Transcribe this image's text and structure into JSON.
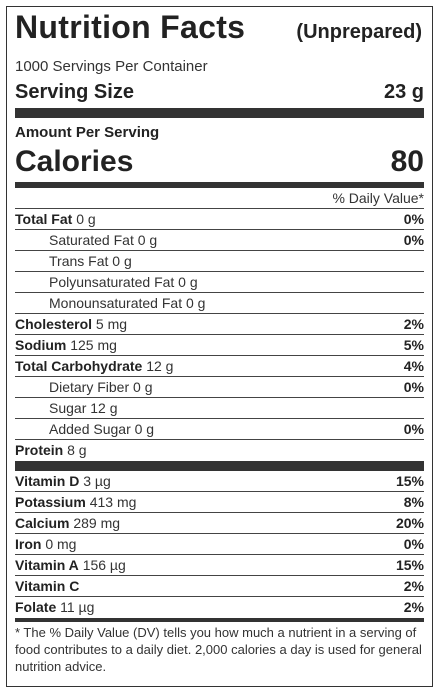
{
  "header": {
    "title": "Nutrition Facts",
    "subtitle": "(Unprepared)",
    "servings_per_container": "1000 Servings Per Container",
    "serving_size_label": "Serving Size",
    "serving_size_value": "23 g",
    "amount_per_serving": "Amount Per Serving",
    "calories_label": "Calories",
    "calories_value": "80",
    "dv_header": "% Daily Value*"
  },
  "nutrients": [
    {
      "name": "Total Fat",
      "amount": "0 g",
      "dv": "0%",
      "bold": true,
      "indent": false
    },
    {
      "name": "Saturated Fat 0 g",
      "amount": "",
      "dv": "0%",
      "bold": false,
      "indent": true
    },
    {
      "name": "Trans Fat 0 g",
      "amount": "",
      "dv": "",
      "bold": false,
      "indent": true
    },
    {
      "name": "Polyunsaturated Fat 0 g",
      "amount": "",
      "dv": "",
      "bold": false,
      "indent": true
    },
    {
      "name": "Monounsaturated Fat 0 g",
      "amount": "",
      "dv": "",
      "bold": false,
      "indent": true
    },
    {
      "name": "Cholesterol",
      "amount": "5 mg",
      "dv": "2%",
      "bold": true,
      "indent": false
    },
    {
      "name": "Sodium",
      "amount": "125 mg",
      "dv": "5%",
      "bold": true,
      "indent": false
    },
    {
      "name": "Total Carbohydrate",
      "amount": "12 g",
      "dv": "4%",
      "bold": true,
      "indent": false
    },
    {
      "name": "Dietary Fiber 0 g",
      "amount": "",
      "dv": "0%",
      "bold": false,
      "indent": true
    },
    {
      "name": "Sugar 12 g",
      "amount": "",
      "dv": "",
      "bold": false,
      "indent": true
    },
    {
      "name": "Added Sugar 0 g",
      "amount": "",
      "dv": "0%",
      "bold": false,
      "indent": true
    },
    {
      "name": "Protein",
      "amount": "8 g",
      "dv": "",
      "bold": true,
      "indent": false
    }
  ],
  "vitamins": [
    {
      "name": "Vitamin D",
      "amount": "3 µg",
      "dv": "15%"
    },
    {
      "name": "Potassium",
      "amount": "413 mg",
      "dv": "8%"
    },
    {
      "name": "Calcium",
      "amount": "289 mg",
      "dv": "20%"
    },
    {
      "name": "Iron",
      "amount": "0 mg",
      "dv": "0%"
    },
    {
      "name": "Vitamin A",
      "amount": "156 µg",
      "dv": "15%"
    },
    {
      "name": "Vitamin C",
      "amount": "",
      "dv": "2%"
    },
    {
      "name": "Folate",
      "amount": "11 µg",
      "dv": "2%"
    }
  ],
  "footnote": "* The % Daily Value (DV) tells you how much a nutrient in a serving of food contributes to a daily diet. 2,000 calories a day is used for general nutrition advice."
}
